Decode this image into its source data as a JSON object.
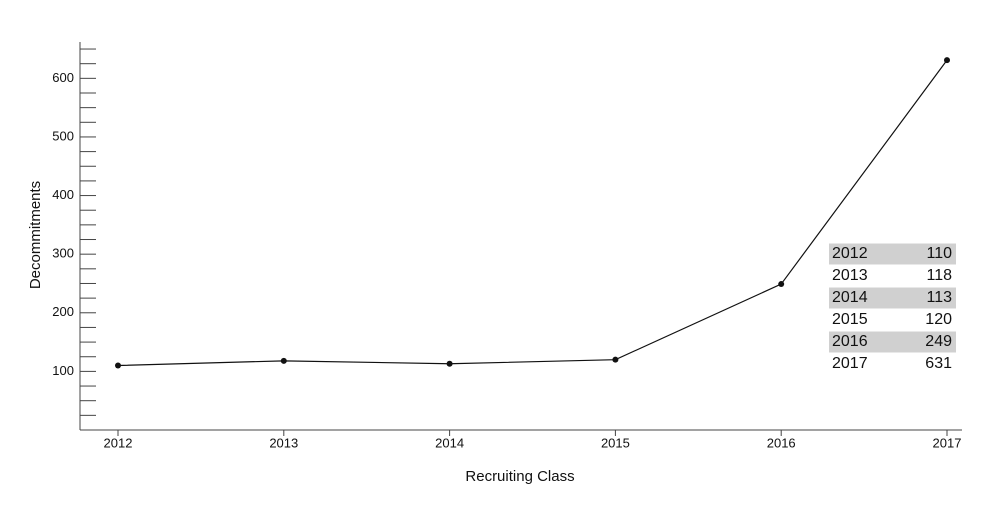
{
  "chart_data": {
    "type": "line",
    "x_label": "Recruiting Class",
    "y_label": "Decommitments",
    "categories": [
      "2012",
      "2013",
      "2014",
      "2015",
      "2016",
      "2017"
    ],
    "values": [
      110,
      118,
      113,
      120,
      249,
      631
    ],
    "color": "#111111",
    "ylim": [
      0,
      662
    ],
    "yticks": [
      100,
      200,
      300,
      400,
      500,
      600
    ],
    "minor_yticks": [
      25,
      50,
      75,
      125,
      150,
      175,
      225,
      250,
      275,
      325,
      350,
      375,
      425,
      450,
      475,
      525,
      550,
      575,
      625,
      650
    ],
    "table_shading": "#d0d0d0"
  }
}
